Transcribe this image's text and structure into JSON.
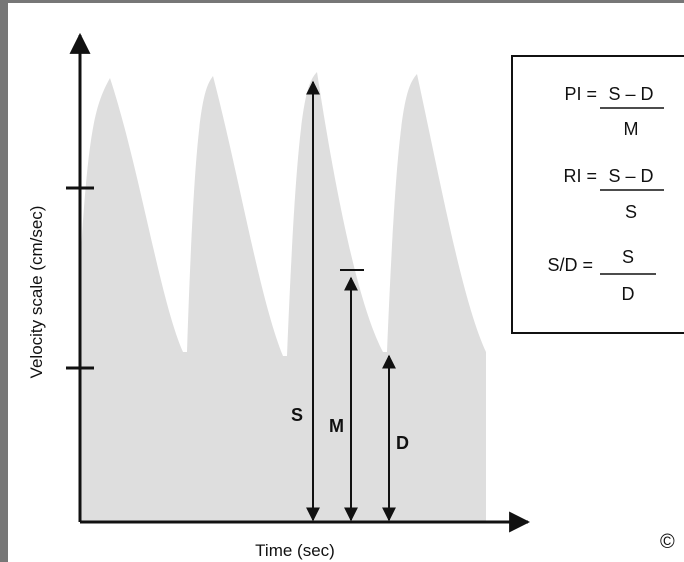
{
  "axes": {
    "y_label": "Velocity scale (cm/sec)",
    "x_label": "Time (sec)"
  },
  "markers": {
    "systolic": "S",
    "mean": "M",
    "diastolic": "D"
  },
  "formulas": [
    {
      "lhs": "PI =",
      "numerator": "S – D",
      "denominator": "M"
    },
    {
      "lhs": "RI =",
      "numerator": "S – D",
      "denominator": "S"
    },
    {
      "lhs": "S/D =",
      "numerator": "S",
      "denominator": "D"
    }
  ],
  "copyright": "©",
  "colors": {
    "waveform_fill": "#dedede",
    "ink": "#111111",
    "frame": "#777777"
  }
}
